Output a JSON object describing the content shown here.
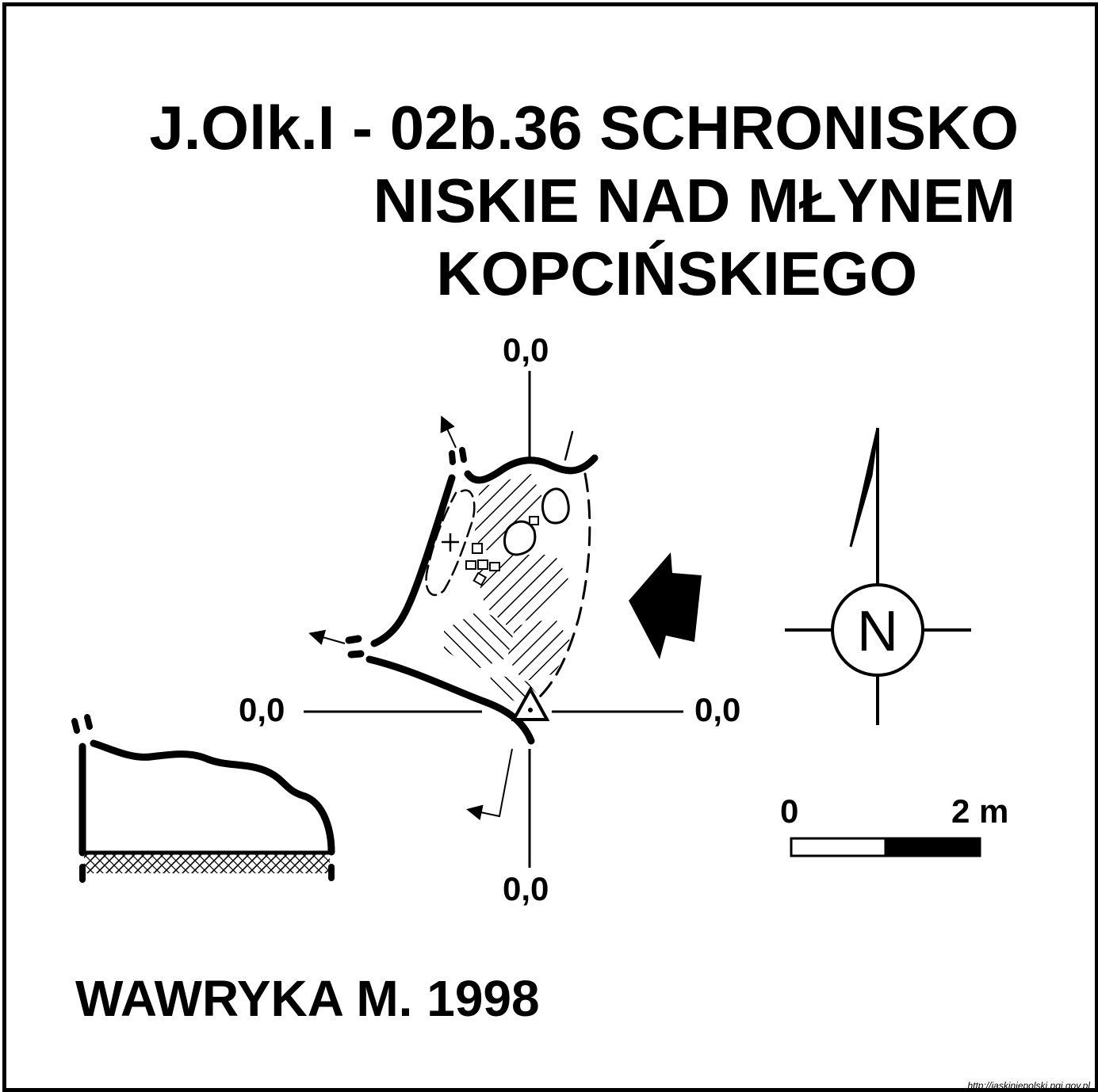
{
  "title": {
    "line1": "J.Olk.I - 02b.36  SCHRONISKO",
    "line2": "NISKIE NAD MŁYNEM",
    "line3": "KOPCIŃSKIEGO"
  },
  "datum_labels": {
    "top": "0,0",
    "left": "0,0",
    "right": "0,0",
    "bottom": "0,0"
  },
  "compass": {
    "letter": "N"
  },
  "scale_bar": {
    "start_label": "0",
    "end_label": "2 m"
  },
  "author": "WAWRYKA M. 1998",
  "source": "http://jaskiniepolski.pgi.gov.pl"
}
